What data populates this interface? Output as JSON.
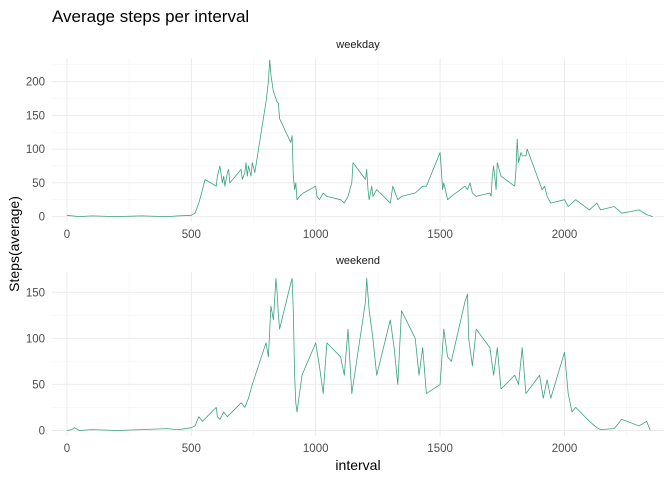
{
  "chart_data": {
    "type": "line",
    "title": "Average steps per interval",
    "xlabel": "interval",
    "ylabel": "Steps(average)",
    "line_color": "#3aa37f",
    "x_ticks": [
      0,
      500,
      1000,
      1500,
      2000
    ],
    "xlim": [
      -60,
      2400
    ],
    "grid": true,
    "panels": [
      {
        "name": "weekday",
        "ylim": [
          -8,
          235
        ],
        "y_ticks": [
          0,
          50,
          100,
          150,
          200
        ],
        "x": [
          0,
          50,
          100,
          200,
          300,
          400,
          450,
          500,
          515,
          530,
          545,
          555,
          600,
          605,
          615,
          625,
          630,
          635,
          645,
          650,
          655,
          700,
          705,
          715,
          720,
          725,
          730,
          740,
          745,
          755,
          800,
          810,
          815,
          820,
          830,
          835,
          840,
          845,
          850,
          855,
          900,
          905,
          910,
          915,
          920,
          925,
          935,
          950,
          1000,
          1005,
          1015,
          1030,
          1045,
          1100,
          1115,
          1130,
          1145,
          1150,
          1200,
          1205,
          1210,
          1215,
          1225,
          1230,
          1245,
          1300,
          1310,
          1330,
          1345,
          1400,
          1415,
          1430,
          1445,
          1500,
          1505,
          1510,
          1515,
          1530,
          1545,
          1600,
          1610,
          1620,
          1630,
          1645,
          1700,
          1705,
          1710,
          1715,
          1725,
          1730,
          1745,
          1800,
          1805,
          1810,
          1815,
          1825,
          1830,
          1845,
          1850,
          1900,
          1910,
          1920,
          1930,
          1945,
          2000,
          2015,
          2030,
          2045,
          2100,
          2130,
          2145,
          2200,
          2230,
          2300,
          2330,
          2355
        ],
        "y": [
          2,
          0,
          1,
          0,
          1,
          0,
          1,
          2,
          5,
          20,
          40,
          55,
          45,
          60,
          75,
          50,
          60,
          45,
          65,
          70,
          50,
          70,
          55,
          65,
          80,
          60,
          75,
          60,
          80,
          65,
          170,
          200,
          232,
          210,
          185,
          180,
          175,
          170,
          168,
          145,
          110,
          120,
          60,
          40,
          50,
          25,
          30,
          35,
          45,
          30,
          25,
          35,
          30,
          25,
          20,
          30,
          50,
          80,
          55,
          70,
          40,
          25,
          45,
          30,
          40,
          20,
          45,
          25,
          30,
          35,
          40,
          45,
          45,
          95,
          70,
          40,
          50,
          25,
          30,
          45,
          40,
          50,
          35,
          30,
          35,
          30,
          60,
          75,
          40,
          80,
          60,
          45,
          70,
          115,
          80,
          95,
          90,
          90,
          100,
          50,
          40,
          45,
          30,
          20,
          25,
          15,
          20,
          25,
          10,
          20,
          10,
          15,
          5,
          10,
          3,
          0
        ],
        "xy_sample_note": ""
      },
      {
        "name": "weekend",
        "ylim": [
          -6,
          172
        ],
        "y_ticks": [
          0,
          50,
          100,
          150
        ],
        "x": [
          0,
          20,
          30,
          50,
          100,
          200,
          300,
          400,
          450,
          500,
          515,
          530,
          545,
          600,
          605,
          615,
          630,
          645,
          700,
          715,
          730,
          745,
          800,
          810,
          820,
          830,
          840,
          845,
          850,
          855,
          900,
          905,
          910,
          915,
          920,
          925,
          945,
          1000,
          1015,
          1030,
          1045,
          1100,
          1115,
          1130,
          1145,
          1200,
          1205,
          1215,
          1230,
          1245,
          1300,
          1315,
          1330,
          1345,
          1400,
          1415,
          1430,
          1445,
          1500,
          1515,
          1530,
          1545,
          1600,
          1610,
          1615,
          1630,
          1645,
          1700,
          1715,
          1730,
          1745,
          1800,
          1815,
          1830,
          1845,
          1900,
          1915,
          1930,
          1945,
          2000,
          2015,
          2030,
          2045,
          2100,
          2130,
          2145,
          2200,
          2230,
          2300,
          2330,
          2345
        ],
        "y": [
          0,
          1,
          3,
          0,
          1,
          0,
          1,
          2,
          1,
          3,
          5,
          15,
          10,
          25,
          15,
          12,
          20,
          15,
          30,
          25,
          35,
          50,
          95,
          80,
          135,
          120,
          165,
          150,
          125,
          110,
          160,
          165,
          130,
          60,
          30,
          20,
          60,
          95,
          70,
          40,
          95,
          80,
          60,
          110,
          40,
          140,
          165,
          130,
          100,
          60,
          120,
          90,
          50,
          130,
          100,
          60,
          90,
          40,
          50,
          110,
          80,
          75,
          140,
          148,
          100,
          70,
          110,
          90,
          60,
          90,
          45,
          60,
          50,
          90,
          40,
          60,
          35,
          55,
          35,
          85,
          40,
          20,
          25,
          10,
          3,
          1,
          2,
          12,
          5,
          10,
          0
        ]
      }
    ]
  }
}
